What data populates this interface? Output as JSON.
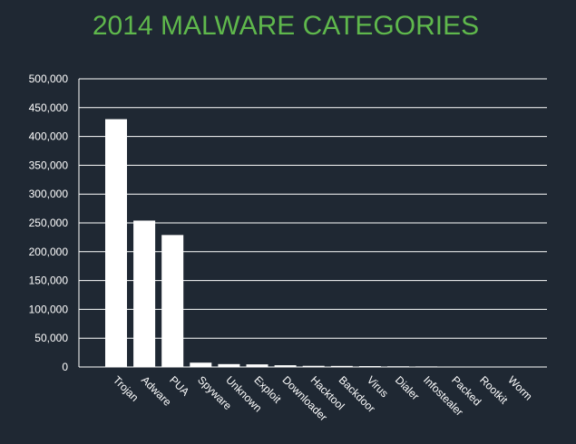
{
  "chart_data": {
    "type": "bar",
    "title": "2014 MALWARE CATEGORIES",
    "xlabel": "",
    "ylabel": "",
    "categories": [
      "Trojan",
      "Adware",
      "PUA",
      "Spyware",
      "Unknown",
      "Exploit",
      "Downloader",
      "Hacktool",
      "Backdoor",
      "Virus",
      "Dialer",
      "Infostealer",
      "Packed",
      "Rootkit",
      "Worm"
    ],
    "values": [
      430000,
      254000,
      229000,
      7500,
      5000,
      4500,
      3000,
      2000,
      1800,
      1500,
      1200,
      1000,
      800,
      600,
      500
    ],
    "ylim": [
      0,
      500000
    ],
    "yticks": [
      "0",
      "50,000",
      "100,000",
      "150,000",
      "200,000",
      "250,000",
      "300,000",
      "350,000",
      "400,000",
      "450,000",
      "500,000"
    ],
    "grid": true,
    "legend": "none"
  },
  "colors": {
    "background": "#1f2833",
    "title": "#5fb84c",
    "bars": "#ffffff",
    "grid": "#ffffff",
    "text": "#ffffff"
  }
}
